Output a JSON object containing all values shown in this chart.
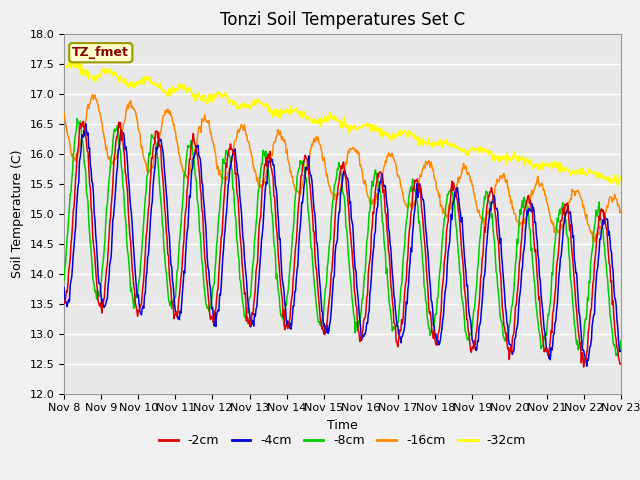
{
  "title": "Tonzi Soil Temperatures Set C",
  "xlabel": "Time",
  "ylabel": "Soil Temperature (C)",
  "ylim": [
    12.0,
    18.0
  ],
  "yticks": [
    12.0,
    12.5,
    13.0,
    13.5,
    14.0,
    14.5,
    15.0,
    15.5,
    16.0,
    16.5,
    17.0,
    17.5,
    18.0
  ],
  "xtick_labels": [
    "Nov 8",
    "Nov 9",
    "Nov 10",
    "Nov 11",
    "Nov 12",
    "Nov 13",
    "Nov 14",
    "Nov 15",
    "Nov 16",
    "Nov 17",
    "Nov 18",
    "Nov 19",
    "Nov 20",
    "Nov 21",
    "Nov 22",
    "Nov 23"
  ],
  "colors": {
    "-2cm": "#dd0000",
    "-4cm": "#0000dd",
    "-8cm": "#00cc00",
    "-16cm": "#ff8800",
    "-32cm": "#ffff00"
  },
  "annotation_box": "TZ_fmet",
  "annotation_color": "#880000",
  "plot_bg_color": "#e8e8e8",
  "fig_bg_color": "#f0f0f0",
  "grid_color": "#ffffff",
  "title_fontsize": 12,
  "axis_fontsize": 9,
  "tick_fontsize": 8,
  "legend_fontsize": 9
}
